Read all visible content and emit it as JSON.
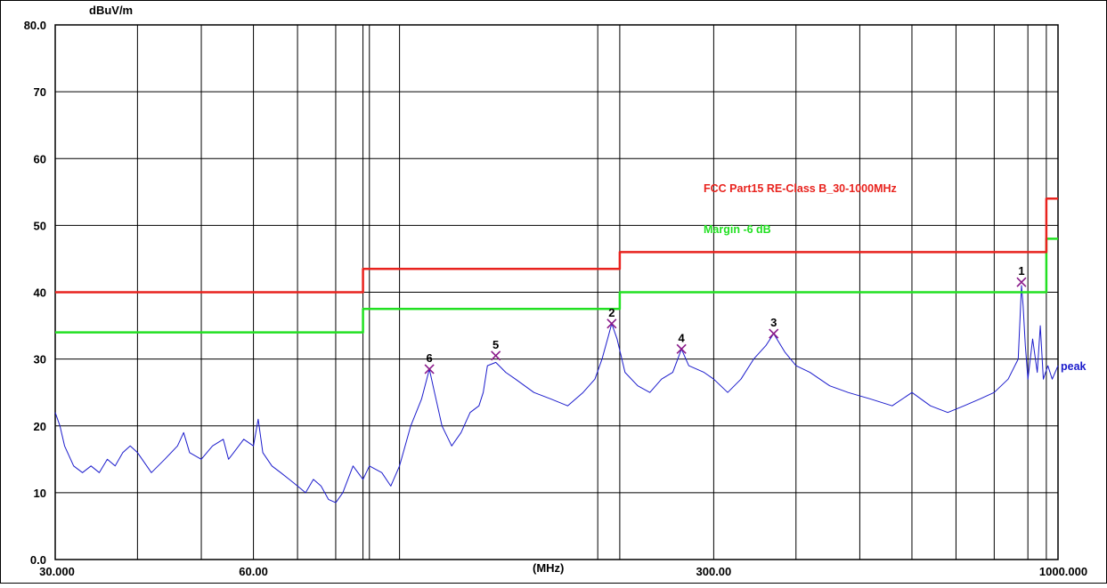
{
  "chart_data": {
    "type": "line",
    "ylabel_unit": "dBuV/m",
    "xlabel_unit": "(MHz)",
    "x_scale": "log",
    "xlim": [
      30,
      1000
    ],
    "ylim": [
      0,
      80
    ],
    "y_ticks": [
      {
        "value": 80,
        "label": "80.0"
      },
      {
        "value": 70,
        "label": "70"
      },
      {
        "value": 60,
        "label": "60"
      },
      {
        "value": 50,
        "label": "50"
      },
      {
        "value": 40,
        "label": "40"
      },
      {
        "value": 30,
        "label": "30"
      },
      {
        "value": 20,
        "label": "20"
      },
      {
        "value": 10,
        "label": "10"
      },
      {
        "value": 0,
        "label": "0.0"
      }
    ],
    "x_ticks": [
      {
        "value": 30,
        "label": "30.000"
      },
      {
        "value": 60,
        "label": "60.00"
      },
      {
        "value": 300,
        "label": "300.00"
      },
      {
        "value": 1000,
        "label": "1000.000"
      }
    ],
    "x_gridlines": [
      30,
      40,
      50,
      60,
      70,
      80,
      88,
      90,
      100,
      200,
      216,
      300,
      400,
      500,
      600,
      700,
      800,
      900,
      960,
      1000
    ],
    "grid": true,
    "limit_line": {
      "name": "FCC Part15 RE-Class B_30-1000MHz",
      "color": "#e8231e",
      "points": [
        [
          30,
          40.0
        ],
        [
          88,
          40.0
        ],
        [
          88,
          43.5
        ],
        [
          216,
          43.5
        ],
        [
          216,
          46.0
        ],
        [
          960,
          46.0
        ],
        [
          960,
          54.0
        ],
        [
          1000,
          54.0
        ]
      ]
    },
    "margin_line": {
      "name": "Margin -6 dB",
      "color": "#22e022",
      "points": [
        [
          30,
          34.0
        ],
        [
          88,
          34.0
        ],
        [
          88,
          37.5
        ],
        [
          216,
          37.5
        ],
        [
          216,
          40.0
        ],
        [
          960,
          40.0
        ],
        [
          960,
          48.0
        ],
        [
          1000,
          48.0
        ]
      ]
    },
    "trace": {
      "name": "peak",
      "color": "#1c1ccc",
      "points": [
        [
          30,
          22
        ],
        [
          30.5,
          20
        ],
        [
          31,
          17
        ],
        [
          32,
          14
        ],
        [
          33,
          13
        ],
        [
          34,
          14
        ],
        [
          35,
          13
        ],
        [
          36,
          15
        ],
        [
          37,
          14
        ],
        [
          38,
          16
        ],
        [
          39,
          17
        ],
        [
          40,
          16
        ],
        [
          42,
          13
        ],
        [
          44,
          15
        ],
        [
          46,
          17
        ],
        [
          47,
          19
        ],
        [
          48,
          16
        ],
        [
          50,
          15
        ],
        [
          52,
          17
        ],
        [
          54,
          18
        ],
        [
          55,
          15
        ],
        [
          56,
          16
        ],
        [
          58,
          18
        ],
        [
          60,
          17
        ],
        [
          61,
          21
        ],
        [
          62,
          16
        ],
        [
          64,
          14
        ],
        [
          66,
          13
        ],
        [
          68,
          12
        ],
        [
          70,
          11
        ],
        [
          72,
          10
        ],
        [
          74,
          12
        ],
        [
          76,
          11
        ],
        [
          78,
          9
        ],
        [
          80,
          8.5
        ],
        [
          82,
          10
        ],
        [
          85,
          14
        ],
        [
          88,
          12
        ],
        [
          90,
          14
        ],
        [
          94,
          13
        ],
        [
          97,
          11
        ],
        [
          100,
          14
        ],
        [
          104,
          20
        ],
        [
          108,
          24
        ],
        [
          110,
          27
        ],
        [
          111,
          28.5
        ],
        [
          113,
          25
        ],
        [
          116,
          20
        ],
        [
          120,
          17
        ],
        [
          124,
          19
        ],
        [
          128,
          22
        ],
        [
          132,
          23
        ],
        [
          134,
          25
        ],
        [
          136,
          29
        ],
        [
          140,
          29.5
        ],
        [
          145,
          28
        ],
        [
          150,
          27
        ],
        [
          160,
          25
        ],
        [
          170,
          24
        ],
        [
          180,
          23
        ],
        [
          190,
          25
        ],
        [
          198,
          27
        ],
        [
          203,
          30
        ],
        [
          207,
          33
        ],
        [
          210,
          35.3
        ],
        [
          214,
          33
        ],
        [
          220,
          28
        ],
        [
          230,
          26
        ],
        [
          240,
          25
        ],
        [
          250,
          27
        ],
        [
          260,
          28
        ],
        [
          268,
          31.5
        ],
        [
          275,
          29
        ],
        [
          290,
          28
        ],
        [
          300,
          27
        ],
        [
          315,
          25
        ],
        [
          330,
          27
        ],
        [
          345,
          30
        ],
        [
          360,
          32
        ],
        [
          370,
          33.8
        ],
        [
          385,
          31
        ],
        [
          400,
          29
        ],
        [
          420,
          28
        ],
        [
          450,
          26
        ],
        [
          480,
          25
        ],
        [
          520,
          24
        ],
        [
          560,
          23
        ],
        [
          600,
          25
        ],
        [
          640,
          23
        ],
        [
          680,
          22
        ],
        [
          720,
          23
        ],
        [
          760,
          24
        ],
        [
          800,
          25
        ],
        [
          840,
          27
        ],
        [
          870,
          30
        ],
        [
          880,
          41
        ],
        [
          885,
          38
        ],
        [
          892,
          32
        ],
        [
          900,
          27
        ],
        [
          915,
          33
        ],
        [
          930,
          28
        ],
        [
          940,
          35
        ],
        [
          950,
          27
        ],
        [
          965,
          29
        ],
        [
          980,
          27
        ],
        [
          1000,
          29
        ]
      ]
    },
    "markers": [
      {
        "label": "1",
        "x": 880,
        "y": 41.5
      },
      {
        "label": "2",
        "x": 210,
        "y": 35.3
      },
      {
        "label": "3",
        "x": 370,
        "y": 33.8
      },
      {
        "label": "4",
        "x": 268,
        "y": 31.5
      },
      {
        "label": "5",
        "x": 140,
        "y": 30.5
      },
      {
        "label": "6",
        "x": 111,
        "y": 28.5
      }
    ]
  }
}
